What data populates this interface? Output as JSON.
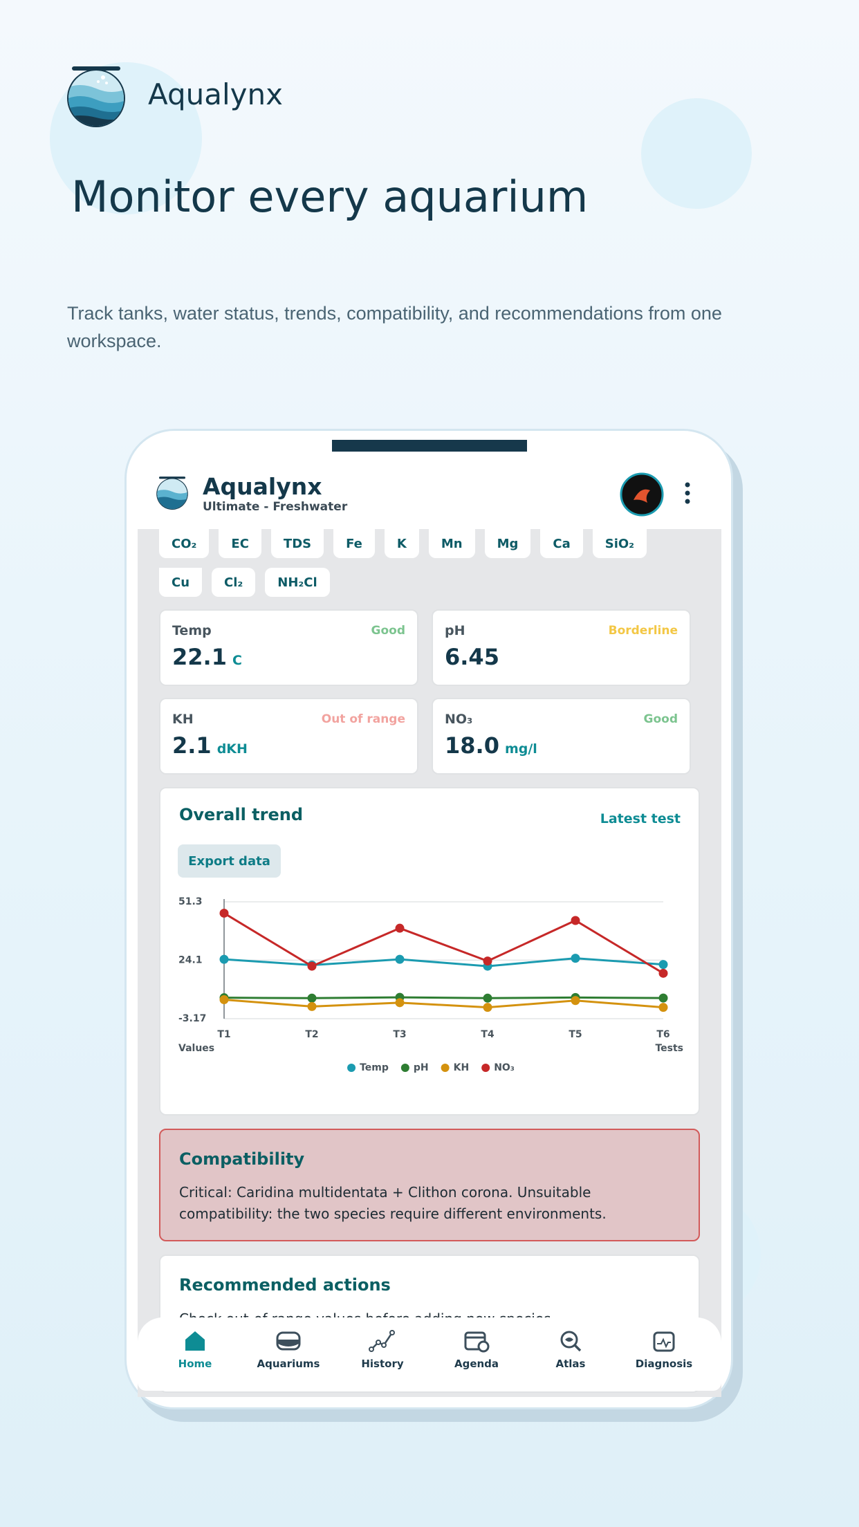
{
  "header": {
    "app_name": "Aqualynx",
    "headline": "Monitor every aquarium",
    "subtitle": "Track tanks, water status, trends, compatibility, and recommendations from one workspace."
  },
  "app": {
    "name": "Aqualynx",
    "plan": "Ultimate - Freshwater"
  },
  "chips": [
    "CO₂",
    "EC",
    "TDS",
    "Fe",
    "K",
    "Mn",
    "Mg",
    "Ca",
    "SiO₂",
    "Cu",
    "Cl₂",
    "NH₂Cl"
  ],
  "metrics": [
    {
      "label": "Temp",
      "status": "Good",
      "value": "22.1",
      "unit": "C"
    },
    {
      "label": "pH",
      "status": "Borderline",
      "value": "6.45"
    },
    {
      "label": "KH",
      "status": "Out of range",
      "value": "2.1",
      "unit": "dKH"
    },
    {
      "label": "NO₃",
      "status": "Good",
      "value": "18.0",
      "unit": "mg/l"
    }
  ],
  "trend": {
    "title": "Overall trend",
    "link": "Latest test",
    "button": "Export data"
  },
  "chart_data": {
    "type": "line",
    "categories": [
      "T1",
      "T2",
      "T3",
      "T4",
      "T5",
      "T6"
    ],
    "x_label": "Tests",
    "y_label": "Values",
    "ylim": [
      -3.17,
      51.3
    ],
    "yticks": [
      -3.17,
      24.1,
      51.3
    ],
    "grid": true,
    "series": [
      {
        "name": "Temp",
        "color": "#1b9bb0",
        "values": [
          24.5,
          21.8,
          24.5,
          21.3,
          25,
          22.1
        ]
      },
      {
        "name": "pH",
        "color": "#2e7d32",
        "values": [
          6.6,
          6.4,
          6.8,
          6.4,
          6.7,
          6.45
        ]
      },
      {
        "name": "KH",
        "color": "#d4920f",
        "values": [
          5.7,
          2.5,
          4.3,
          2.1,
          5.3,
          2.1
        ]
      },
      {
        "name": "NO₃",
        "color": "#c62828",
        "values": [
          46,
          21.3,
          39,
          23.7,
          42.6,
          18
        ]
      }
    ]
  },
  "compatibility": {
    "title": "Compatibility",
    "text": "Critical: Caridina multidentata + Clithon corona. Unsuitable compatibility: the two species require different environments."
  },
  "actions": {
    "title": "Recommended actions",
    "text": "Check out-of-range values before adding new species."
  },
  "nav": [
    "Home",
    "Aquariums",
    "History",
    "Agenda",
    "Atlas",
    "Diagnosis"
  ]
}
